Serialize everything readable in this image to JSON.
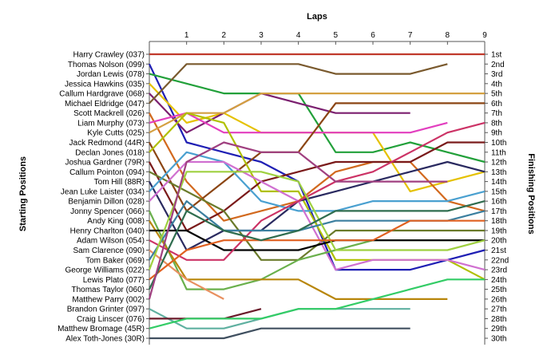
{
  "chart_data": {
    "type": "line",
    "title": "",
    "xlabel": "Laps",
    "ylabel_left": "Starting Positions",
    "ylabel_right": "Finishing Positions",
    "x_ticks": [
      1,
      2,
      3,
      4,
      5,
      6,
      7,
      8,
      9
    ],
    "xlim": [
      0,
      9
    ],
    "ylim": [
      1,
      30
    ],
    "y_inverted": true,
    "grid": false,
    "drivers": [
      "Harry Crawley (037)",
      "Thomas Nolson (099)",
      "Jordan Lewis (078)",
      "Jessica Hawkins (035)",
      "Callum Hardgrave (068)",
      "Michael Eldridge (047)",
      "Scott Mackrell (026)",
      "Liam Murphy (073)",
      "Kyle Cutts (025)",
      "Jack Redmond (44R)",
      "Declan Jones (018)",
      "Joshua Gardner (79R)",
      "Callum Pointon (094)",
      "Tom Hill (88R)",
      "Jean Luke Laister (034)",
      "Benjamin Dillon (028)",
      "Jonny Spencer (066)",
      "Andy King (008)",
      "Henry Charlton (040)",
      "Adam Wilson (054)",
      "Sam Clarence (090)",
      "Tom Baker (069)",
      "George Williams (022)",
      "Lewis Plato (077)",
      "Thomas Taylor (060)",
      "Matthew Parry (002)",
      "Brandon Grinter (097)",
      "Craig Linscer (076)",
      "Matthew Bromage (45R)",
      "Alex Toth-Jones (30R)"
    ],
    "finishing_labels": [
      "1st",
      "2nd",
      "3rd",
      "4th",
      "5th",
      "6th",
      "7th",
      "8th",
      "9th",
      "10th",
      "11th",
      "12th",
      "13th",
      "14th",
      "15th",
      "16th",
      "17th",
      "18th",
      "19th",
      "20th",
      "21st",
      "22nd",
      "23rd",
      "24th",
      "25th",
      "26th",
      "27th",
      "28th",
      "29th",
      "30th"
    ],
    "series": [
      {
        "color": "#c0392b",
        "positions": [
          1,
          1,
          1,
          1,
          1,
          1,
          1,
          1,
          1,
          1
        ]
      },
      {
        "color": "#1f1fb4",
        "positions": [
          2,
          10,
          11,
          12,
          14,
          23,
          23,
          23,
          22,
          21
        ]
      },
      {
        "color": "#22a03a",
        "positions": [
          3,
          4,
          5,
          5,
          5,
          11,
          11,
          10,
          11,
          12
        ]
      },
      {
        "color": "#e5c100",
        "positions": [
          4,
          8,
          7,
          9,
          9,
          9,
          9,
          15,
          14,
          13
        ]
      },
      {
        "color": "#7b1f6f",
        "positions": [
          5,
          9,
          7,
          5,
          6,
          7,
          7,
          7,
          null,
          null
        ]
      },
      {
        "color": "#7a5a2e",
        "positions": [
          6,
          2,
          2,
          2,
          2,
          3,
          3,
          3,
          2,
          null
        ]
      },
      {
        "color": "#d2691e",
        "positions": [
          7,
          14,
          18,
          17,
          16,
          13,
          12,
          12,
          16,
          17
        ]
      },
      {
        "color": "#e23fbf",
        "positions": [
          8,
          7,
          9,
          9,
          9,
          9,
          9,
          9,
          8,
          null
        ]
      },
      {
        "color": "#d4a040",
        "positions": [
          9,
          7,
          7,
          5,
          5,
          5,
          5,
          5,
          5,
          5
        ]
      },
      {
        "color": "#8b4513",
        "positions": [
          10,
          17,
          14,
          11,
          11,
          6,
          6,
          6,
          6,
          6
        ]
      },
      {
        "color": "#b0c000",
        "positions": [
          11,
          7,
          8,
          15,
          15,
          22,
          22,
          22,
          22,
          24
        ]
      },
      {
        "color": "#7a1a1a",
        "positions": [
          12,
          19,
          17,
          14,
          13,
          12,
          12,
          12,
          10,
          10
        ]
      },
      {
        "color": "#6a7a2a",
        "positions": [
          13,
          15,
          17,
          22,
          22,
          19,
          19,
          19,
          19,
          19
        ]
      },
      {
        "color": "#2a2a60",
        "positions": [
          14,
          21,
          19,
          19,
          16,
          15,
          14,
          13,
          12,
          13
        ]
      },
      {
        "color": "#4aa0d0",
        "positions": [
          15,
          11,
          12,
          16,
          17,
          17,
          16,
          16,
          16,
          15
        ]
      },
      {
        "color": "#d070d0",
        "positions": [
          16,
          12,
          12,
          14,
          16,
          23,
          22,
          22,
          22,
          23
        ]
      },
      {
        "color": "#6ab04c",
        "positions": [
          17,
          25,
          25,
          24,
          22,
          21,
          20,
          20,
          20,
          20
        ]
      },
      {
        "color": "#b8860b",
        "positions": [
          18,
          24,
          24,
          24,
          24,
          26,
          26,
          26,
          26,
          null
        ]
      },
      {
        "color": "#000000",
        "positions": [
          19,
          19,
          21,
          21,
          21,
          20,
          20,
          20,
          20,
          20
        ]
      },
      {
        "color": "#cc3366",
        "positions": [
          20,
          22,
          22,
          18,
          16,
          14,
          13,
          11,
          9,
          8
        ]
      },
      {
        "color": "#e89060",
        "positions": [
          21,
          24,
          26,
          null,
          null,
          null,
          null,
          null,
          null,
          null
        ]
      },
      {
        "color": "#3b7f9f",
        "positions": [
          22,
          16,
          19,
          19,
          19,
          18,
          18,
          18,
          18,
          17
        ]
      },
      {
        "color": "#9fd040",
        "positions": [
          23,
          13,
          13,
          13,
          14,
          21,
          21,
          21,
          21,
          20
        ]
      },
      {
        "color": "#e06020",
        "positions": [
          24,
          21,
          20,
          20,
          20,
          20,
          20,
          18,
          18,
          18
        ]
      },
      {
        "color": "#2f6d4f",
        "positions": [
          25,
          17,
          19,
          20,
          19,
          17,
          17,
          17,
          17,
          16
        ]
      },
      {
        "color": "#a04080",
        "positions": [
          26,
          12,
          10,
          11,
          11,
          14,
          14,
          14,
          14,
          null
        ]
      },
      {
        "color": "#5fb0a0",
        "positions": [
          27,
          29,
          29,
          28,
          27,
          27,
          27,
          27,
          null,
          null
        ]
      },
      {
        "color": "#6a1a2a",
        "positions": [
          28,
          28,
          28,
          27,
          null,
          null,
          null,
          null,
          null,
          null
        ]
      },
      {
        "color": "#33cc66",
        "positions": [
          29,
          28,
          28,
          28,
          27,
          27,
          26,
          25,
          24,
          24
        ]
      },
      {
        "color": "#405060",
        "positions": [
          30,
          30,
          30,
          29,
          29,
          29,
          29,
          29,
          null,
          null
        ]
      }
    ]
  }
}
